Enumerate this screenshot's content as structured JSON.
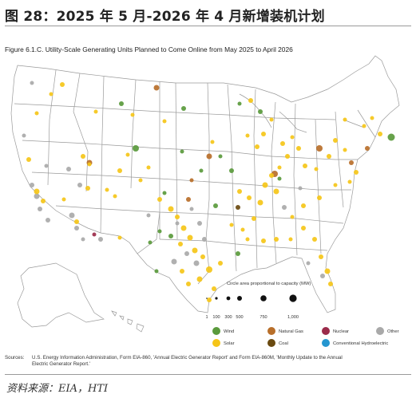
{
  "header": {
    "title": "图 28：2025 年 5 月-2026 年 4 月新增装机计划"
  },
  "figure": {
    "title": "Figure 6.1.C. Utility-Scale Generating Units Planned to Come Online from May 2025 to April 2026"
  },
  "size_legend": {
    "title": "Circle area proportional to capacity (MW)",
    "values": [
      "1",
      "100",
      "300",
      "500",
      "750",
      "1,000"
    ]
  },
  "fuel_legend": [
    {
      "label": "Wind",
      "color": "#5a9a3c"
    },
    {
      "label": "Natural Gas",
      "color": "#b86f2a"
    },
    {
      "label": "Nuclear",
      "color": "#9b2b4a"
    },
    {
      "label": "Other",
      "color": "#a9a9a9"
    },
    {
      "label": "Solar",
      "color": "#f5c518"
    },
    {
      "label": "Coal",
      "color": "#6a4a10"
    },
    {
      "label": "Conventional Hydroelectric",
      "color": "#2596d0"
    }
  ],
  "sources": {
    "label": "Sources:",
    "text": "U.S. Energy Information Administration, Form EIA-860, 'Annual Electric Generator Report' and Form EIA-860M, 'Monthly Update to the Annual Electric Generator Report.'"
  },
  "note": {
    "text": "资料来源：EIA，HTI"
  }
}
